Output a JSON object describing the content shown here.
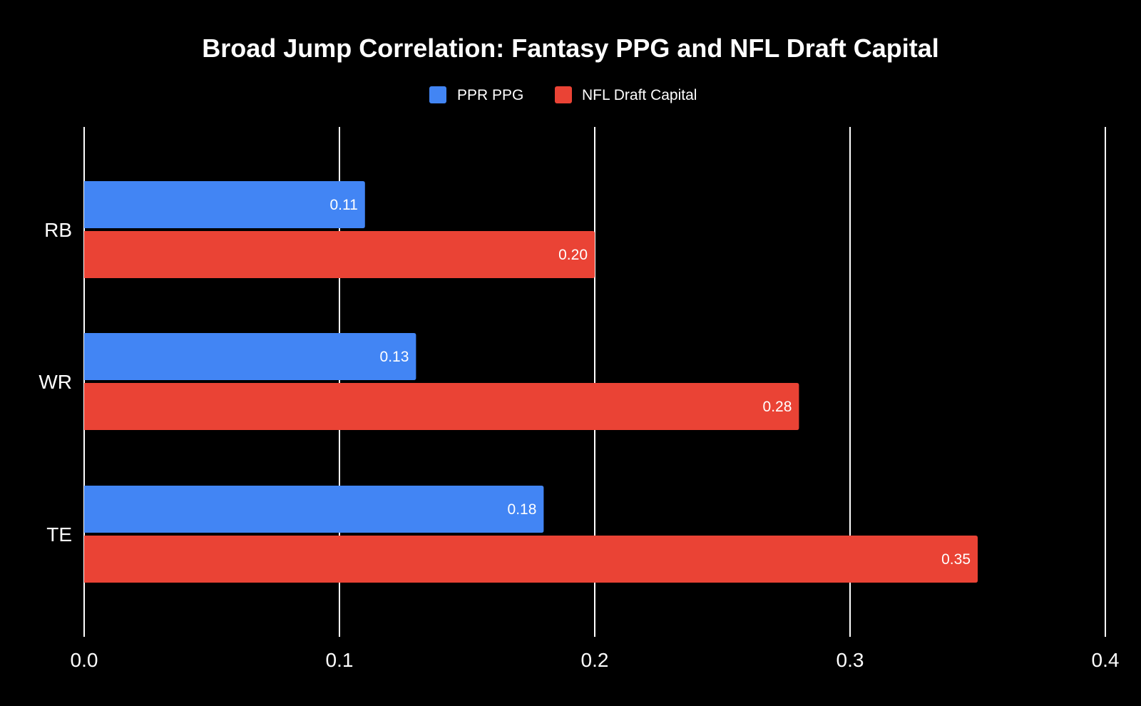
{
  "chart_data": {
    "type": "bar",
    "orientation": "horizontal",
    "title": "Broad Jump Correlation: Fantasy PPG and NFL Draft Capital",
    "categories": [
      "RB",
      "WR",
      "TE"
    ],
    "series": [
      {
        "name": "PPR PPG",
        "color": "#4285f4",
        "values": [
          0.11,
          0.13,
          0.18
        ],
        "labels": [
          "0.11",
          "0.13",
          "0.18"
        ]
      },
      {
        "name": "NFL Draft Capital",
        "color": "#ea4335",
        "values": [
          0.2,
          0.28,
          0.35
        ],
        "labels": [
          "0.20",
          "0.28",
          "0.35"
        ]
      }
    ],
    "xlim": [
      0,
      0.4
    ],
    "xticks": [
      0,
      0.1,
      0.2,
      0.3,
      0.4
    ],
    "xtick_labels": [
      "0.0",
      "0.1",
      "0.2",
      "0.3",
      "0.4"
    ],
    "xlabel": "",
    "ylabel": "",
    "grid": "vertical",
    "legend_position": "top-center",
    "background": "#000000",
    "text_color": "#ffffff"
  }
}
